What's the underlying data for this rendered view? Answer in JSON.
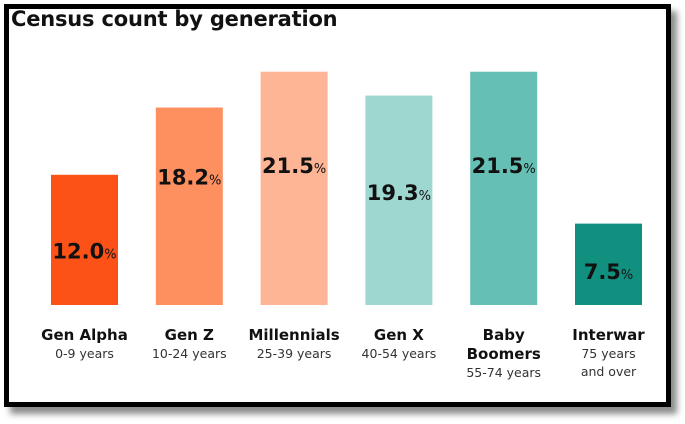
{
  "chart_data": {
    "type": "bar",
    "title": "Census count by generation",
    "xlabel": "",
    "ylabel": "",
    "unit": "%",
    "ylim": [
      0,
      25
    ],
    "grid": false,
    "legend": "none",
    "categories": [
      "Gen Alpha",
      "Gen Z",
      "Millennials",
      "Gen X",
      "Baby Boomers",
      "Interwar"
    ],
    "category_subtitles": [
      "0-9 years",
      "10-24 years",
      "25-39 years",
      "40-54 years",
      "55-74 years",
      "75 years and over"
    ],
    "category_name_lines": [
      [
        "Gen Alpha"
      ],
      [
        "Gen Z"
      ],
      [
        "Millennials"
      ],
      [
        "Gen X"
      ],
      [
        "Baby",
        "Boomers"
      ],
      [
        "Interwar"
      ]
    ],
    "category_subtitle_lines": [
      [
        "0-9 years"
      ],
      [
        "10-24 years"
      ],
      [
        "25-39 years"
      ],
      [
        "40-54 years"
      ],
      [
        "55-74 years"
      ],
      [
        "75 years",
        "and over"
      ]
    ],
    "values": [
      12.0,
      18.2,
      21.5,
      19.3,
      21.5,
      7.5
    ],
    "value_labels": [
      "12.0",
      "18.2",
      "21.5",
      "19.3",
      "21.5",
      "7.5"
    ],
    "colors": [
      "#fc5217",
      "#fe8f5f",
      "#feb596",
      "#9dd7cf",
      "#66bfb4",
      "#11907f"
    ]
  }
}
